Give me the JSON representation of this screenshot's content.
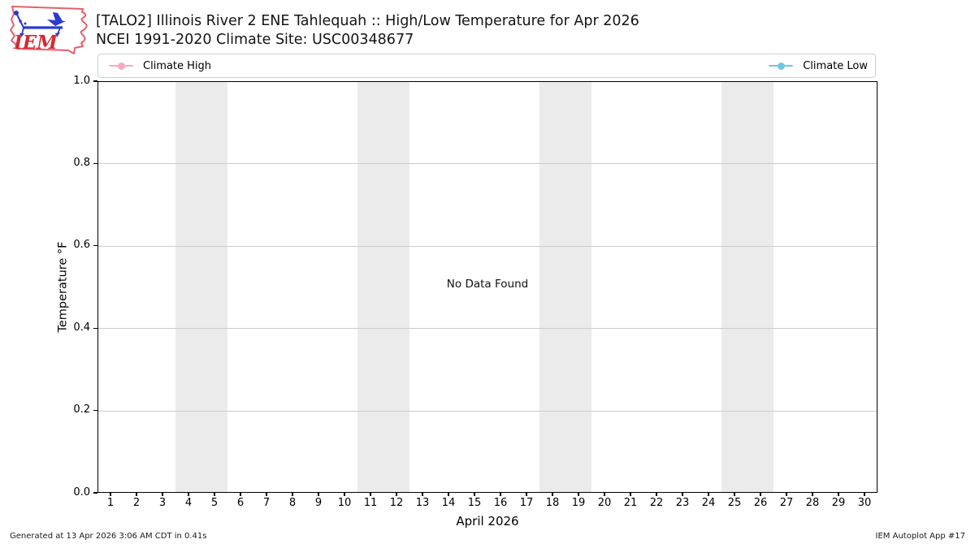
{
  "header": {
    "title_line1": "[TALO2] Illinois River 2 ENE Tahlequah :: High/Low Temperature for Apr 2026",
    "title_line2": "NCEI 1991-2020 Climate Site: USC00348677",
    "logo_text": "IEM"
  },
  "legend": [
    {
      "label": "Climate High",
      "color": "#f8a9ba"
    },
    {
      "label": "Climate Low",
      "color": "#6ec6e4"
    }
  ],
  "chart_data": {
    "type": "line",
    "title": "[TALO2] Illinois River 2 ENE Tahlequah :: High/Low Temperature for Apr 2026",
    "subtitle": "NCEI 1991-2020 Climate Site: USC00348677",
    "xlabel": "April 2026",
    "ylabel": "Temperature °F",
    "xlim": [
      0.5,
      30.5
    ],
    "ylim": [
      0.0,
      1.0
    ],
    "x_ticks": [
      1,
      2,
      3,
      4,
      5,
      6,
      7,
      8,
      9,
      10,
      11,
      12,
      13,
      14,
      15,
      16,
      17,
      18,
      19,
      20,
      21,
      22,
      23,
      24,
      25,
      26,
      27,
      28,
      29,
      30
    ],
    "y_ticks": [
      "0.0",
      "0.2",
      "0.4",
      "0.6",
      "0.8",
      "1.0"
    ],
    "y_grid": [
      0.2,
      0.4,
      0.6,
      0.8
    ],
    "grid": true,
    "legend_position": "top, expanded across plot width",
    "weekend_bands": [
      [
        3.5,
        5.5
      ],
      [
        10.5,
        12.5
      ],
      [
        17.5,
        19.5
      ],
      [
        24.5,
        26.5
      ]
    ],
    "band_color": "#ebebeb",
    "grid_color": "#cccccc",
    "series": [
      {
        "name": "Climate High",
        "color": "#f8a9ba",
        "x": [],
        "values": []
      },
      {
        "name": "Climate Low",
        "color": "#6ec6e4",
        "x": [],
        "values": []
      }
    ],
    "annotation": "No Data Found"
  },
  "footer": {
    "left": "Generated at 13 Apr 2026 3:06 AM CDT in 0.41s",
    "right": "IEM Autoplot App #17"
  }
}
